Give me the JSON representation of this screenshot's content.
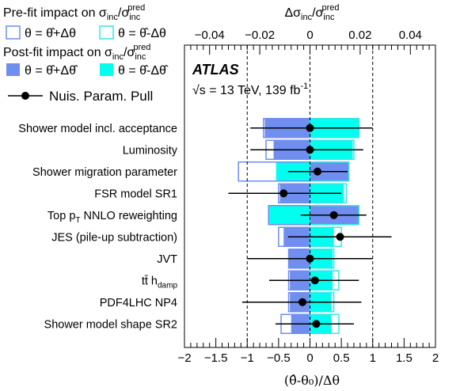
{
  "colors": {
    "prefit_up": "#6f8ef0",
    "prefit_down": "#33e6e6",
    "postfit_up": "#6f8ef0",
    "postfit_down": "#00ffee",
    "pull": "#000000"
  },
  "legend": {
    "prefit_title": "Pre-fit impact on σ",
    "prefit_title_sub1": "inc",
    "prefit_title_mid": "/σ",
    "prefit_title_sub2": "inc",
    "prefit_title_sup2": "pred",
    "prefit_up": "θ = θ̂+Δθ",
    "prefit_down": "θ = θ̂-Δθ",
    "postfit_title": "Post-fit impact on σ",
    "postfit_title_sub1": "inc",
    "postfit_title_mid": "/σ",
    "postfit_title_sub2": "inc",
    "postfit_title_sup2": "pred",
    "postfit_up": "θ = θ̂+Δθ̂",
    "postfit_down": "θ = θ̂-Δθ̂",
    "pull": "Nuis. Param. Pull"
  },
  "atlas": {
    "label": "ATLAS",
    "energy": "√s = 13 TeV, 139 fb",
    "energy_sup": "-1"
  },
  "chart_data": {
    "type": "bar",
    "orientation": "horizontal",
    "title": "",
    "xlabel": "(θ̂-θ₀)/Δθ",
    "x2label": "Δσinc/σincpred",
    "xlim": [
      -2,
      2
    ],
    "x2lim": [
      -0.05,
      0.05
    ],
    "xticks": [
      -2,
      -1.5,
      -1,
      -0.5,
      0,
      0.5,
      1,
      1.5,
      2
    ],
    "xtick_labels": [
      "−2",
      "−1.5",
      "−1",
      "−0.5",
      "0",
      "0.5",
      "1",
      "1.5",
      "2"
    ],
    "x2ticks": [
      -0.04,
      -0.02,
      0,
      0.02,
      0.04
    ],
    "x2tick_labels": [
      "−0.04",
      "−0.02",
      "0",
      "0.02",
      "0.04"
    ],
    "reference_lines": [
      -1,
      0,
      1
    ],
    "categories": [
      "Shower model incl. acceptance",
      "Luminosity",
      "Shower migration parameter",
      "FSR model SR1",
      "Top p_T NNLO reweighting",
      "JES (pile-up subtraction)",
      "JVT",
      "tt̄ h_damp",
      "PDF4LHC NP4",
      "Shower model shape SR2"
    ],
    "category_labels": [
      {
        "main": "Shower model incl. acceptance"
      },
      {
        "main": "Luminosity"
      },
      {
        "main": "Shower migration parameter"
      },
      {
        "main": "FSR model SR1"
      },
      {
        "pre": "Top p",
        "sub": "T",
        "post": " NNLO reweighting"
      },
      {
        "main": "JES (pile-up subtraction)"
      },
      {
        "main": "JVT"
      },
      {
        "pre": "tt̄ h",
        "sub": "damp",
        "post": ""
      },
      {
        "main": "PDF4LHC NP4"
      },
      {
        "main": "Shower model shape SR2"
      }
    ],
    "series": [
      {
        "name": "Pre-fit θ = θ̂+Δθ",
        "values": [
          -0.0185,
          -0.0175,
          -0.0285,
          -0.0125,
          -0.0165,
          -0.0125,
          -0.0085,
          -0.0085,
          -0.0085,
          -0.0115
        ]
      },
      {
        "name": "Pre-fit θ = θ̂-Δθ",
        "values": [
          0.0195,
          0.0175,
          0.0155,
          0.0145,
          0.0195,
          0.0125,
          0.0095,
          0.0115,
          0.0095,
          0.0115
        ]
      },
      {
        "name": "Post-fit θ = θ̂+Δθ̂",
        "values": [
          -0.018,
          -0.0145,
          0.0155,
          -0.012,
          0.0195,
          -0.0105,
          -0.0085,
          -0.008,
          -0.008,
          -0.0075
        ]
      },
      {
        "name": "Post-fit θ = θ̂-Δθ̂",
        "values": [
          0.0195,
          0.017,
          -0.0135,
          0.0135,
          -0.0165,
          0.0095,
          0.009,
          0.009,
          0.0085,
          0.0085
        ]
      }
    ],
    "pulls": [
      {
        "value": 0.0,
        "low": -0.95,
        "high": 1.0
      },
      {
        "value": 0.0,
        "low": -0.95,
        "high": 0.85
      },
      {
        "value": 0.12,
        "low": -0.35,
        "high": 0.6
      },
      {
        "value": -0.42,
        "low": -1.3,
        "high": 0.5
      },
      {
        "value": 0.38,
        "low": -0.15,
        "high": 0.9
      },
      {
        "value": 0.48,
        "low": -0.35,
        "high": 1.3
      },
      {
        "value": 0.0,
        "low": -1.0,
        "high": 1.0
      },
      {
        "value": 0.08,
        "low": -0.65,
        "high": 0.78
      },
      {
        "value": -0.12,
        "low": -1.08,
        "high": 0.82
      },
      {
        "value": 0.1,
        "low": -0.55,
        "high": 0.7
      }
    ]
  }
}
